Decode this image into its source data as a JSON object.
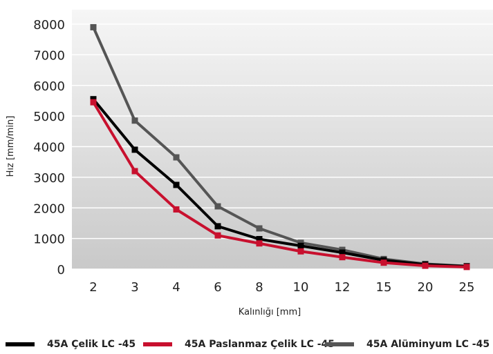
{
  "chart_data": {
    "type": "line",
    "categories": [
      "2",
      "3",
      "4",
      "6",
      "8",
      "10",
      "12",
      "15",
      "20",
      "25"
    ],
    "xlabel": "Kalınlığı [mm]",
    "ylabel": "Hız [mm/min]",
    "ylim": [
      0,
      8000
    ],
    "yticks": [
      "0",
      "1000",
      "2000",
      "3000",
      "4000",
      "5000",
      "6000",
      "7000",
      "8000"
    ],
    "grid": true,
    "legend_position": "bottom",
    "series": [
      {
        "name": "45A Çelik LC -45",
        "color": "#000000",
        "values": [
          5550,
          3900,
          2750,
          1400,
          980,
          760,
          540,
          290,
          150,
          90
        ]
      },
      {
        "name": "45A Paslanmaz Çelik LC -45",
        "color": "#c8102e",
        "values": [
          5450,
          3200,
          1950,
          1100,
          840,
          580,
          390,
          210,
          110,
          70
        ]
      },
      {
        "name": "45A Alüminyum LC -45",
        "color": "#555555",
        "values": [
          7900,
          4850,
          3650,
          2050,
          1330,
          860,
          630,
          330,
          170,
          100
        ]
      }
    ]
  }
}
